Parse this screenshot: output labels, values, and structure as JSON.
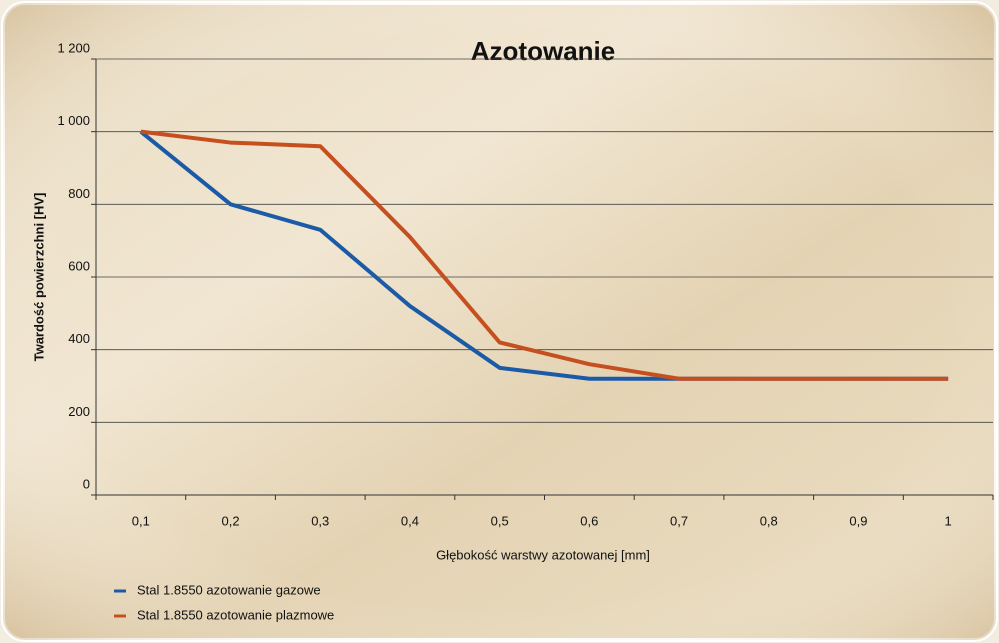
{
  "chart_data": {
    "type": "line",
    "title": "Azotowanie",
    "x_label": "Głębokość warstwy azotowanej [mm]",
    "y_label": "Twardość powierzchni [HV]",
    "categories": [
      "0,1",
      "0,2",
      "0,3",
      "0,4",
      "0,5",
      "0,6",
      "0,7",
      "0,8",
      "0,9",
      "1"
    ],
    "series": [
      {
        "name": "Stal 1.8550 azotowanie gazowe",
        "color": "#1b5aa6",
        "values": [
          1000,
          800,
          730,
          520,
          350,
          320,
          320,
          320,
          320,
          320
        ]
      },
      {
        "name": "Stal 1.8550 azotowanie plazmowe",
        "color": "#c54f1f",
        "values": [
          1000,
          970,
          960,
          710,
          420,
          360,
          320,
          320,
          320,
          320
        ]
      }
    ],
    "ylim": [
      0,
      1200
    ],
    "yticks": [
      0,
      200,
      400,
      600,
      800,
      {
        "value": 1000,
        "label": "1 000"
      },
      {
        "value": 1200,
        "label": "1 200"
      }
    ],
    "grid": true
  }
}
